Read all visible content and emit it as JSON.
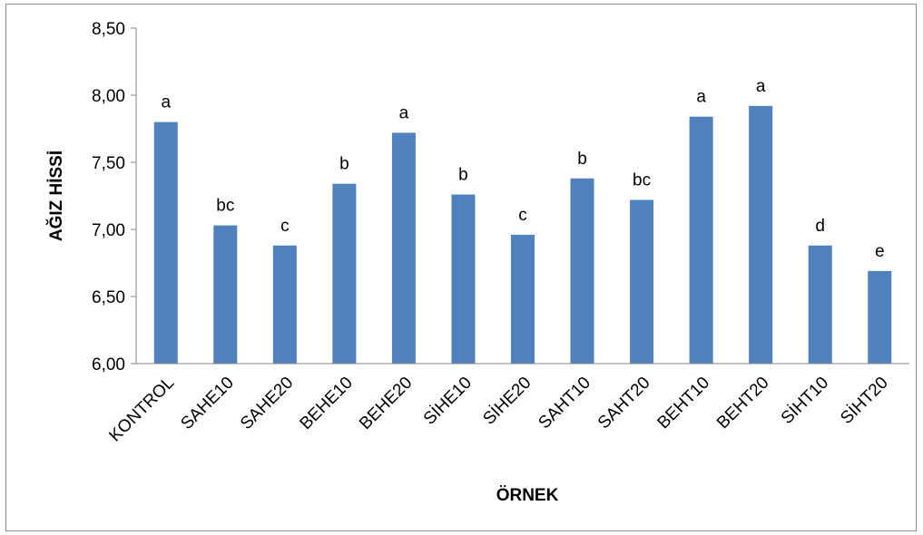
{
  "chart_data": {
    "type": "bar",
    "xlabel": "ÖRNEK",
    "ylabel": "AĞIZ HİSSİ",
    "ylim": [
      6.0,
      8.5
    ],
    "yticks": [
      "6,00",
      "6,50",
      "7,00",
      "7,50",
      "8,00",
      "8,50"
    ],
    "ytick_values": [
      6.0,
      6.5,
      7.0,
      7.5,
      8.0,
      8.5
    ],
    "grid": false,
    "legend": "none",
    "bar_color": "#4f81bd",
    "categories": [
      "KONTROL",
      "SAHE10",
      "SAHE20",
      "BEHE10",
      "BEHE20",
      "SİHE10",
      "SİHE20",
      "SAHT10",
      "SAHT20",
      "BEHT10",
      "BEHT20",
      "SİHT10",
      "SİHT20"
    ],
    "values": [
      7.8,
      7.03,
      6.88,
      7.34,
      7.72,
      7.26,
      6.96,
      7.38,
      7.22,
      7.84,
      7.92,
      6.88,
      6.69
    ],
    "data_labels": [
      "a",
      "bc",
      "c",
      "b",
      "a",
      "b",
      "c",
      "b",
      "bc",
      "a",
      "a",
      "d",
      "e"
    ]
  }
}
